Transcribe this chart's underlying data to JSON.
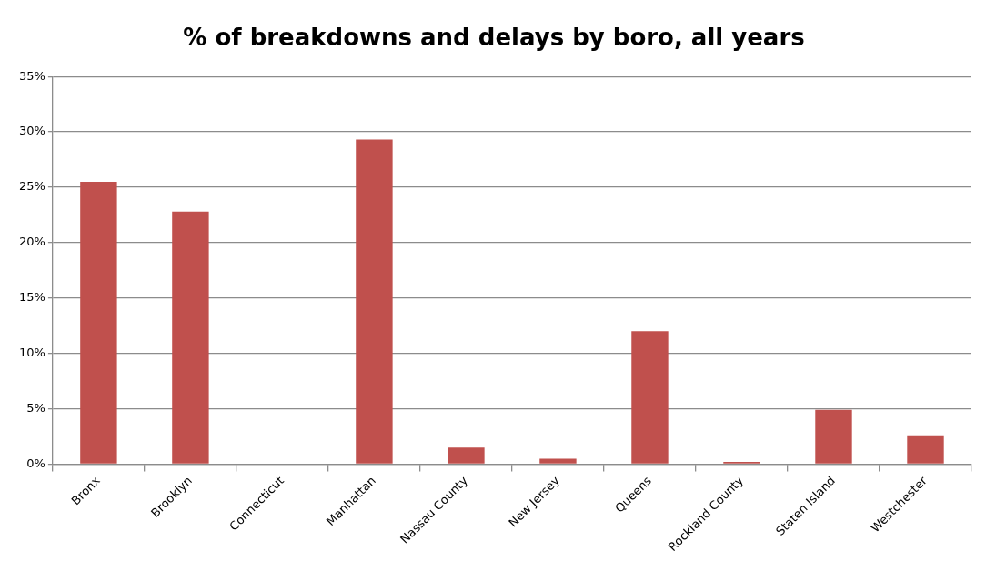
{
  "chart_data": {
    "type": "bar",
    "title": "% of breakdowns and delays by boro, all years",
    "categories": [
      "Bronx",
      "Brooklyn",
      "Connecticut",
      "Manhattan",
      "Nassau County",
      "New Jersey",
      "Queens",
      "Rockland County",
      "Staten Island",
      "Westchester"
    ],
    "values": [
      25.5,
      22.8,
      0,
      29.3,
      1.5,
      0.5,
      12.0,
      0.2,
      4.9,
      2.6
    ],
    "color": "#c0504d",
    "ylim": [
      0,
      35
    ],
    "yticks": [
      {
        "value": 0,
        "label": "0%"
      },
      {
        "value": 5,
        "label": "5%"
      },
      {
        "value": 10,
        "label": "10%"
      },
      {
        "value": 15,
        "label": "15%"
      },
      {
        "value": 20,
        "label": "20%"
      },
      {
        "value": 25,
        "label": "25%"
      },
      {
        "value": 30,
        "label": "30%"
      },
      {
        "value": 35,
        "label": "35%"
      }
    ],
    "grid": "y",
    "legend": false
  }
}
